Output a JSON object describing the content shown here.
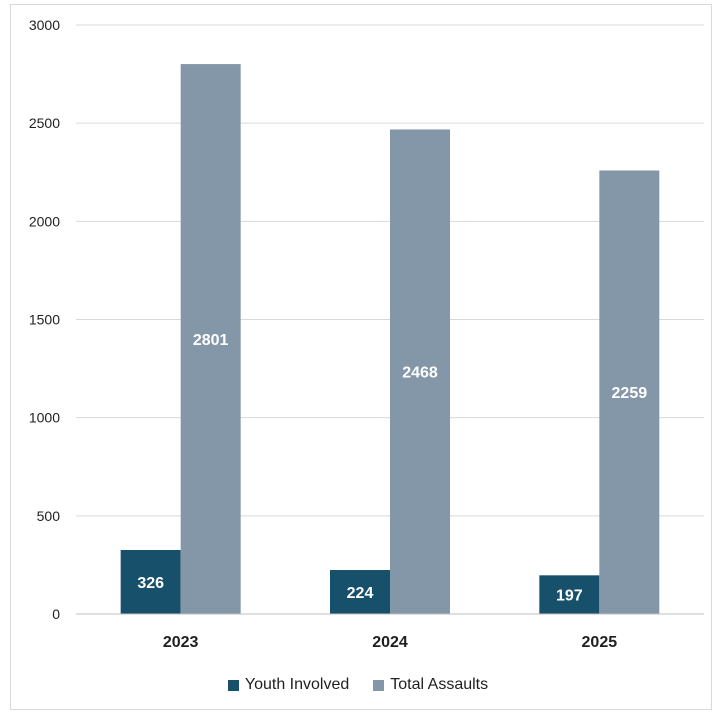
{
  "chart_data": {
    "type": "bar",
    "categories": [
      "2023",
      "2024",
      "2025"
    ],
    "series": [
      {
        "name": "Youth Involved",
        "values": [
          326,
          224,
          197
        ],
        "color": "#17506b"
      },
      {
        "name": "Total Assaults",
        "values": [
          2801,
          2468,
          2259
        ],
        "color": "#8497a8"
      }
    ],
    "ylim": [
      0,
      3000
    ],
    "yticks": [
      "0",
      "500",
      "1000",
      "1500",
      "2000",
      "2500",
      "3000"
    ],
    "grid": true,
    "legend_position": "bottom"
  }
}
